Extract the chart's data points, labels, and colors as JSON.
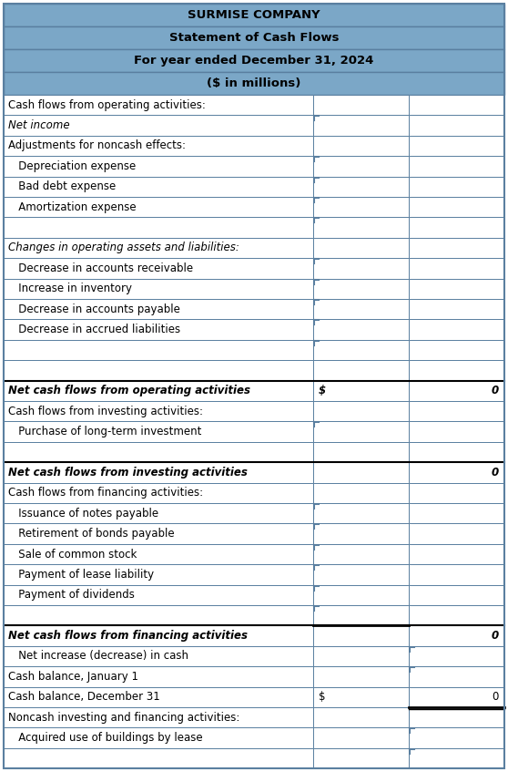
{
  "title_lines": [
    "SURMISE COMPANY",
    "Statement of Cash Flows",
    "For year ended December 31, 2024",
    "($ in millions)"
  ],
  "header_bg": "#7ba7c7",
  "border_color": "#5a7fa0",
  "text_color": "#000000",
  "rows": [
    {
      "label": "Cash flows from operating activities:",
      "indent": 0,
      "col1": "",
      "col2": "",
      "style": "normal",
      "top_border": false,
      "col1_input": false,
      "col2_input": false
    },
    {
      "label": "Net income",
      "indent": 0,
      "col1": "",
      "col2": "",
      "style": "italic",
      "top_border": false,
      "col1_input": true,
      "col2_input": false
    },
    {
      "label": "Adjustments for noncash effects:",
      "indent": 0,
      "col1": "",
      "col2": "",
      "style": "normal",
      "top_border": false,
      "col1_input": false,
      "col2_input": false
    },
    {
      "label": "   Depreciation expense",
      "indent": 0,
      "col1": "",
      "col2": "",
      "style": "normal",
      "top_border": false,
      "col1_input": true,
      "col2_input": false
    },
    {
      "label": "   Bad debt expense",
      "indent": 0,
      "col1": "",
      "col2": "",
      "style": "normal",
      "top_border": false,
      "col1_input": true,
      "col2_input": false
    },
    {
      "label": "   Amortization expense",
      "indent": 0,
      "col1": "",
      "col2": "",
      "style": "normal",
      "top_border": false,
      "col1_input": true,
      "col2_input": false
    },
    {
      "label": "",
      "indent": 0,
      "col1": "",
      "col2": "",
      "style": "normal",
      "top_border": false,
      "col1_input": true,
      "col2_input": false
    },
    {
      "label": "Changes in operating assets and liabilities:",
      "indent": 0,
      "col1": "",
      "col2": "",
      "style": "italic",
      "top_border": false,
      "col1_input": false,
      "col2_input": false
    },
    {
      "label": "   Decrease in accounts receivable",
      "indent": 0,
      "col1": "",
      "col2": "",
      "style": "normal",
      "top_border": false,
      "col1_input": true,
      "col2_input": false
    },
    {
      "label": "   Increase in inventory",
      "indent": 0,
      "col1": "",
      "col2": "",
      "style": "normal",
      "top_border": false,
      "col1_input": true,
      "col2_input": false
    },
    {
      "label": "   Decrease in accounts payable",
      "indent": 0,
      "col1": "",
      "col2": "",
      "style": "normal",
      "top_border": false,
      "col1_input": true,
      "col2_input": false
    },
    {
      "label": "   Decrease in accrued liabilities",
      "indent": 0,
      "col1": "",
      "col2": "",
      "style": "normal",
      "top_border": false,
      "col1_input": true,
      "col2_input": false
    },
    {
      "label": "",
      "indent": 0,
      "col1": "",
      "col2": "",
      "style": "normal",
      "top_border": false,
      "col1_input": true,
      "col2_input": false
    },
    {
      "label": "",
      "indent": 0,
      "col1": "",
      "col2": "",
      "style": "normal",
      "top_border": false,
      "col1_input": false,
      "col2_input": false
    },
    {
      "label": "Net cash flows from operating activities",
      "indent": 0,
      "col1": "$",
      "col2": "0",
      "style": "italic_bold",
      "top_border": true,
      "col1_input": false,
      "col2_input": false
    },
    {
      "label": "Cash flows from investing activities:",
      "indent": 0,
      "col1": "",
      "col2": "",
      "style": "normal",
      "top_border": false,
      "col1_input": false,
      "col2_input": false
    },
    {
      "label": "   Purchase of long-term investment",
      "indent": 0,
      "col1": "",
      "col2": "",
      "style": "normal",
      "top_border": false,
      "col1_input": true,
      "col2_input": false
    },
    {
      "label": "",
      "indent": 0,
      "col1": "",
      "col2": "",
      "style": "normal",
      "top_border": false,
      "col1_input": false,
      "col2_input": false
    },
    {
      "label": "Net cash flows from investing activities",
      "indent": 0,
      "col1": "",
      "col2": "0",
      "style": "italic_bold",
      "top_border": true,
      "col1_input": false,
      "col2_input": false
    },
    {
      "label": "Cash flows from financing activities:",
      "indent": 0,
      "col1": "",
      "col2": "",
      "style": "normal",
      "top_border": false,
      "col1_input": false,
      "col2_input": false
    },
    {
      "label": "   Issuance of notes payable",
      "indent": 0,
      "col1": "",
      "col2": "",
      "style": "normal",
      "top_border": false,
      "col1_input": true,
      "col2_input": false
    },
    {
      "label": "   Retirement of bonds payable",
      "indent": 0,
      "col1": "",
      "col2": "",
      "style": "normal",
      "top_border": false,
      "col1_input": true,
      "col2_input": false
    },
    {
      "label": "   Sale of common stock",
      "indent": 0,
      "col1": "",
      "col2": "",
      "style": "normal",
      "top_border": false,
      "col1_input": true,
      "col2_input": false
    },
    {
      "label": "   Payment of lease liability",
      "indent": 0,
      "col1": "",
      "col2": "",
      "style": "normal",
      "top_border": false,
      "col1_input": true,
      "col2_input": false
    },
    {
      "label": "   Payment of dividends",
      "indent": 0,
      "col1": "",
      "col2": "",
      "style": "normal",
      "top_border": false,
      "col1_input": true,
      "col2_input": false
    },
    {
      "label": "",
      "indent": 0,
      "col1": "",
      "col2": "",
      "style": "normal",
      "top_border": false,
      "col1_input": true,
      "col2_input": false
    },
    {
      "label": "Net cash flows from financing activities",
      "indent": 0,
      "col1": "",
      "col2": "0",
      "style": "italic_bold",
      "top_border": true,
      "col1_input": false,
      "col2_input": false
    },
    {
      "label": "   Net increase (decrease) in cash",
      "indent": 0,
      "col1": "",
      "col2": "",
      "style": "normal",
      "top_border": false,
      "col1_input": false,
      "col2_input": true
    },
    {
      "label": "Cash balance, January 1",
      "indent": 0,
      "col1": "",
      "col2": "",
      "style": "normal",
      "top_border": false,
      "col1_input": false,
      "col2_input": true
    },
    {
      "label": "Cash balance, December 31",
      "indent": 0,
      "col1": "$",
      "col2": "0",
      "style": "normal",
      "top_border": false,
      "col1_input": false,
      "col2_input": false
    },
    {
      "label": "Noncash investing and financing activities:",
      "indent": 0,
      "col1": "",
      "col2": "",
      "style": "normal",
      "top_border": false,
      "col1_input": false,
      "col2_input": false
    },
    {
      "label": "   Acquired use of buildings by lease",
      "indent": 0,
      "col1": "",
      "col2": "",
      "style": "normal",
      "top_border": false,
      "col1_input": false,
      "col2_input": true
    },
    {
      "label": "",
      "indent": 0,
      "col1": "",
      "col2": "",
      "style": "normal",
      "top_border": false,
      "col1_input": false,
      "col2_input": true
    }
  ],
  "figsize": [
    5.58,
    8.58
  ],
  "dpi": 100
}
